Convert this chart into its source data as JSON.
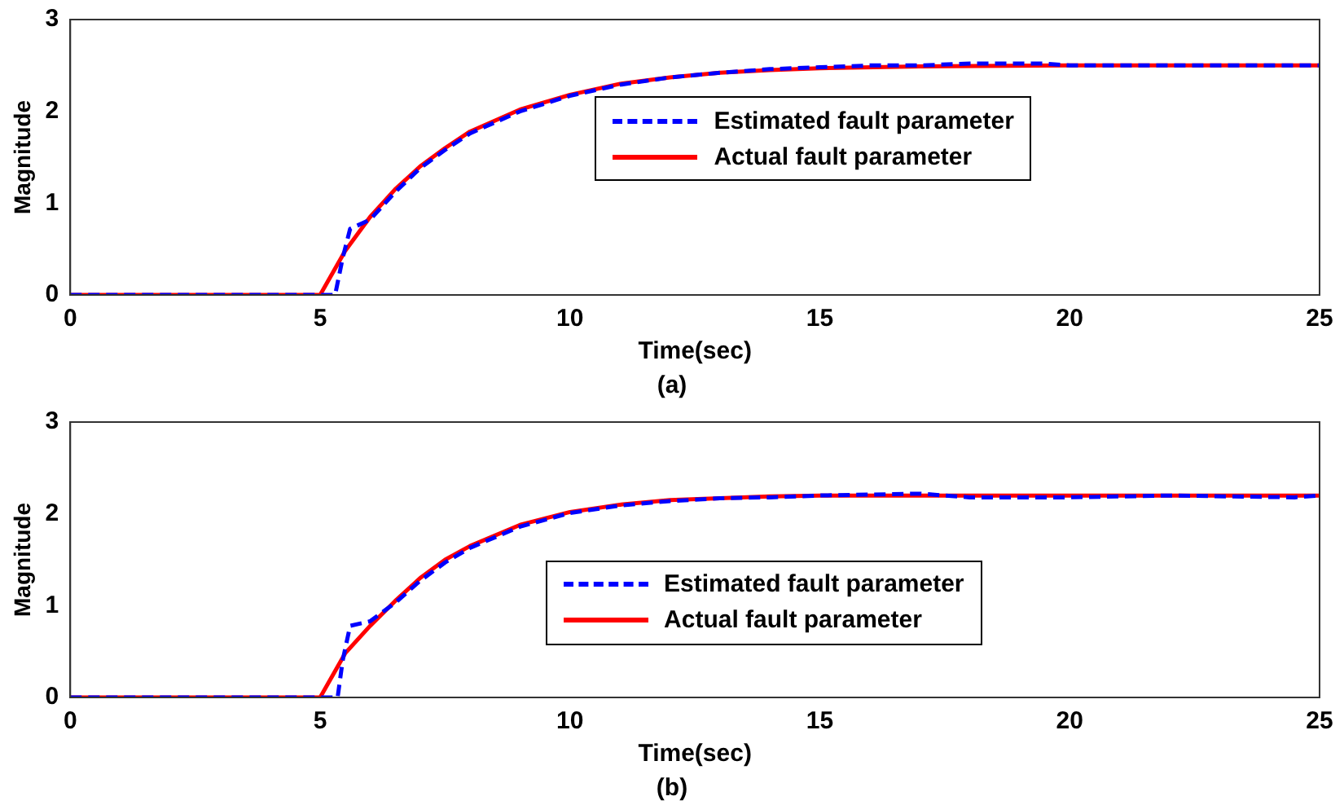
{
  "chart_data": [
    {
      "type": "line",
      "xlabel": "Time(sec)",
      "ylabel": "Magnitude",
      "annotations": [
        "(a)"
      ],
      "xlim": [
        0,
        25
      ],
      "ylim": [
        0,
        3
      ],
      "xticks": [
        0,
        5,
        10,
        15,
        20,
        25
      ],
      "yticks": [
        0,
        1,
        2,
        3
      ],
      "legend": "right",
      "series": [
        {
          "name": "Estimated fault parameter",
          "color": "#0000ff",
          "line_style": "dashed",
          "x": [
            0,
            5,
            5.3,
            5.45,
            5.6,
            6,
            6.5,
            7,
            7.5,
            8,
            9,
            10,
            11,
            12,
            13,
            14,
            15,
            16,
            17,
            18,
            19.5,
            20,
            25
          ],
          "values": [
            0,
            0,
            0,
            0.4,
            0.72,
            0.82,
            1.12,
            1.38,
            1.58,
            1.76,
            2.0,
            2.17,
            2.29,
            2.37,
            2.42,
            2.46,
            2.48,
            2.5,
            2.5,
            2.52,
            2.52,
            2.5,
            2.5
          ]
        },
        {
          "name": "Actual fault parameter",
          "color": "#ff0000",
          "line_style": "solid",
          "x": [
            0,
            5,
            5.5,
            6,
            6.5,
            7,
            7.5,
            8,
            9,
            10,
            11,
            12,
            13,
            14,
            15,
            17,
            20,
            25
          ],
          "values": [
            0,
            0,
            0.48,
            0.85,
            1.15,
            1.4,
            1.6,
            1.78,
            2.02,
            2.18,
            2.3,
            2.37,
            2.42,
            2.45,
            2.47,
            2.49,
            2.5,
            2.5
          ]
        }
      ]
    },
    {
      "type": "line",
      "xlabel": "Time(sec)",
      "ylabel": "Magnitude",
      "annotations": [
        "(b)"
      ],
      "xlim": [
        0,
        25
      ],
      "ylim": [
        0,
        3
      ],
      "xticks": [
        0,
        5,
        10,
        15,
        20,
        25
      ],
      "yticks": [
        0,
        1,
        2,
        3
      ],
      "legend": "right",
      "series": [
        {
          "name": "Estimated fault parameter",
          "color": "#0000ff",
          "line_style": "dashed",
          "x": [
            0,
            5,
            5.35,
            5.45,
            5.6,
            6,
            6.5,
            7,
            7.5,
            8,
            9,
            10,
            11,
            12,
            13,
            14,
            15,
            17,
            18,
            20,
            22,
            24.5,
            25
          ],
          "values": [
            0,
            0,
            0,
            0.4,
            0.78,
            0.83,
            1.03,
            1.27,
            1.47,
            1.63,
            1.86,
            2.01,
            2.09,
            2.14,
            2.17,
            2.18,
            2.2,
            2.22,
            2.18,
            2.18,
            2.2,
            2.18,
            2.2
          ]
        },
        {
          "name": "Actual fault parameter",
          "color": "#ff0000",
          "line_style": "solid",
          "x": [
            0,
            5,
            5.5,
            6,
            6.5,
            7,
            7.5,
            8,
            9,
            10,
            11,
            12,
            13,
            14,
            15,
            25
          ],
          "values": [
            0,
            0,
            0.48,
            0.78,
            1.05,
            1.3,
            1.5,
            1.65,
            1.88,
            2.02,
            2.1,
            2.15,
            2.17,
            2.19,
            2.2,
            2.2
          ]
        }
      ]
    }
  ]
}
